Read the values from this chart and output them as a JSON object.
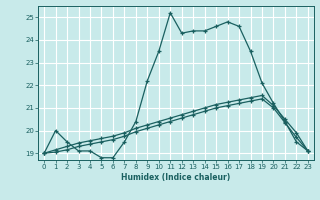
{
  "xlabel": "Humidex (Indice chaleur)",
  "ylabel": "",
  "background_color": "#c8eaea",
  "line_color": "#1a6060",
  "grid_color": "#ffffff",
  "xlim": [
    -0.5,
    23.5
  ],
  "ylim": [
    18.7,
    25.5
  ],
  "xticks": [
    0,
    1,
    2,
    3,
    4,
    5,
    6,
    7,
    8,
    9,
    10,
    11,
    12,
    13,
    14,
    15,
    16,
    17,
    18,
    19,
    20,
    21,
    22,
    23
  ],
  "yticks": [
    19,
    20,
    21,
    22,
    23,
    24,
    25
  ],
  "line1_x": [
    0,
    1,
    2,
    3,
    4,
    5,
    6,
    7,
    8,
    9,
    10,
    11,
    12,
    13,
    14,
    15,
    16,
    17,
    18,
    19,
    20,
    21,
    22,
    23
  ],
  "line1_y": [
    19.0,
    20.0,
    19.5,
    19.1,
    19.1,
    18.8,
    18.8,
    19.5,
    20.4,
    22.2,
    23.5,
    25.2,
    24.3,
    24.4,
    24.4,
    24.6,
    24.8,
    24.6,
    23.5,
    22.1,
    21.2,
    20.4,
    19.5,
    19.1
  ],
  "line2_x": [
    0,
    1,
    2,
    3,
    4,
    5,
    6,
    7,
    8,
    9,
    10,
    11,
    12,
    13,
    14,
    15,
    16,
    17,
    18,
    19,
    20,
    21,
    22,
    23
  ],
  "line2_y": [
    19.0,
    19.15,
    19.3,
    19.45,
    19.55,
    19.65,
    19.75,
    19.9,
    20.1,
    20.25,
    20.4,
    20.55,
    20.7,
    20.85,
    21.0,
    21.15,
    21.25,
    21.35,
    21.45,
    21.55,
    21.1,
    20.5,
    19.9,
    19.1
  ],
  "line3_x": [
    0,
    1,
    2,
    3,
    4,
    5,
    6,
    7,
    8,
    9,
    10,
    11,
    12,
    13,
    14,
    15,
    16,
    17,
    18,
    19,
    20,
    21,
    22,
    23
  ],
  "line3_y": [
    19.0,
    19.05,
    19.15,
    19.3,
    19.4,
    19.5,
    19.6,
    19.75,
    19.95,
    20.1,
    20.25,
    20.4,
    20.55,
    20.7,
    20.85,
    21.0,
    21.1,
    21.2,
    21.3,
    21.4,
    21.0,
    20.35,
    19.7,
    19.1
  ]
}
